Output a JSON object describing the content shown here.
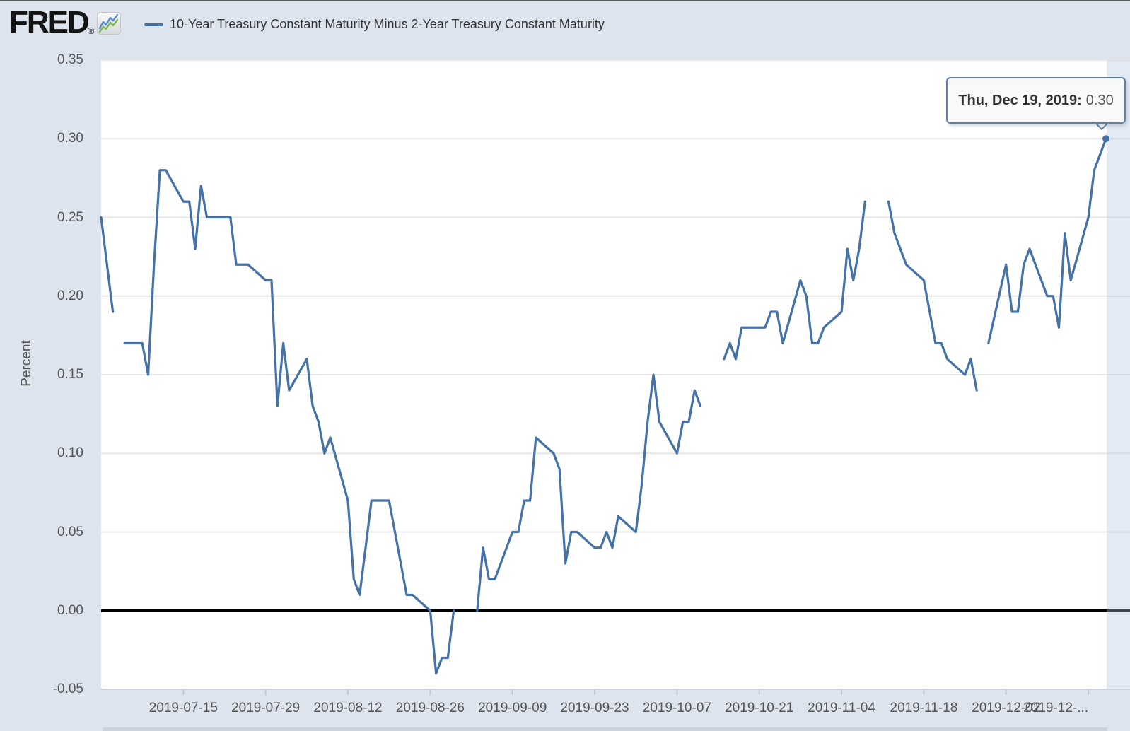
{
  "header": {
    "logo_text": "FRED",
    "logo_registered": "®",
    "logo_icon": "fred-sparkline-icon",
    "legend": {
      "series_label": "10-Year Treasury Constant Maturity Minus 2-Year Treasury Constant Maturity",
      "series_color": "#4572a7"
    }
  },
  "tooltip": {
    "date_label": "Thu, Dec 19, 2019:",
    "value": "0.30"
  },
  "colors": {
    "page_background": "#dde4ee",
    "plot_background": "#ffffff",
    "line": "#4572a7",
    "gridline": "#e7e7e7",
    "zero_line": "#000000",
    "axis_text": "#555555",
    "tooltip_border": "#5e81ab",
    "crosshair_band": "rgba(174,194,222,0.35)",
    "icon_blue": "#5b8cc8",
    "icon_green": "#7ab648"
  },
  "chart_data": {
    "type": "line",
    "title": "10-Year Treasury Constant Maturity Minus 2-Year Treasury Constant Maturity",
    "xlabel": "",
    "ylabel": "Percent",
    "ylim": [
      -0.05,
      0.35
    ],
    "x_range": [
      "2019-07-01",
      "2019-12-23"
    ],
    "grid": true,
    "zero_line": true,
    "legend_position": "top",
    "y_ticks": [
      {
        "v": 0.35,
        "label": "0.35"
      },
      {
        "v": 0.3,
        "label": "0.30"
      },
      {
        "v": 0.25,
        "label": "0.25"
      },
      {
        "v": 0.2,
        "label": "0.20"
      },
      {
        "v": 0.15,
        "label": "0.15"
      },
      {
        "v": 0.1,
        "label": "0.10"
      },
      {
        "v": 0.05,
        "label": "0.05"
      },
      {
        "v": 0.0,
        "label": "0.00"
      },
      {
        "v": -0.05,
        "label": "-0.05"
      }
    ],
    "x_ticks": [
      {
        "date": "2019-07-15",
        "label": "2019-07-15",
        "align": "center"
      },
      {
        "date": "2019-07-29",
        "label": "2019-07-29",
        "align": "center"
      },
      {
        "date": "2019-08-12",
        "label": "2019-08-12",
        "align": "center"
      },
      {
        "date": "2019-08-26",
        "label": "2019-08-26",
        "align": "center"
      },
      {
        "date": "2019-09-09",
        "label": "2019-09-09",
        "align": "center"
      },
      {
        "date": "2019-09-23",
        "label": "2019-09-23",
        "align": "center"
      },
      {
        "date": "2019-10-07",
        "label": "2019-10-07",
        "align": "center"
      },
      {
        "date": "2019-10-21",
        "label": "2019-10-21",
        "align": "center"
      },
      {
        "date": "2019-11-04",
        "label": "2019-11-04",
        "align": "center"
      },
      {
        "date": "2019-11-18",
        "label": "2019-11-18",
        "align": "center"
      },
      {
        "date": "2019-12-02",
        "label": "2019-12-02",
        "align": "center"
      },
      {
        "date": "2019-12-16",
        "label": "2019-12-...",
        "align": "right"
      }
    ],
    "series": [
      {
        "name": "10-Year Treasury Constant Maturity Minus 2-Year Treasury Constant Maturity",
        "color": "#4572a7",
        "points": [
          [
            "2019-07-01",
            0.25
          ],
          [
            "2019-07-02",
            0.22
          ],
          [
            "2019-07-03",
            0.19
          ],
          [
            "2019-07-04",
            null
          ],
          [
            "2019-07-05",
            0.17
          ],
          [
            "2019-07-08",
            0.17
          ],
          [
            "2019-07-09",
            0.15
          ],
          [
            "2019-07-10",
            0.22
          ],
          [
            "2019-07-11",
            0.28
          ],
          [
            "2019-07-12",
            0.28
          ],
          [
            "2019-07-15",
            0.26
          ],
          [
            "2019-07-16",
            0.26
          ],
          [
            "2019-07-17",
            0.23
          ],
          [
            "2019-07-18",
            0.27
          ],
          [
            "2019-07-19",
            0.25
          ],
          [
            "2019-07-22",
            0.25
          ],
          [
            "2019-07-23",
            0.25
          ],
          [
            "2019-07-24",
            0.22
          ],
          [
            "2019-07-25",
            0.22
          ],
          [
            "2019-07-26",
            0.22
          ],
          [
            "2019-07-29",
            0.21
          ],
          [
            "2019-07-30",
            0.21
          ],
          [
            "2019-07-31",
            0.13
          ],
          [
            "2019-08-01",
            0.17
          ],
          [
            "2019-08-02",
            0.14
          ],
          [
            "2019-08-05",
            0.16
          ],
          [
            "2019-08-06",
            0.13
          ],
          [
            "2019-08-07",
            0.12
          ],
          [
            "2019-08-08",
            0.1
          ],
          [
            "2019-08-09",
            0.11
          ],
          [
            "2019-08-12",
            0.07
          ],
          [
            "2019-08-13",
            0.02
          ],
          [
            "2019-08-14",
            0.01
          ],
          [
            "2019-08-15",
            0.04
          ],
          [
            "2019-08-16",
            0.07
          ],
          [
            "2019-08-19",
            0.07
          ],
          [
            "2019-08-20",
            0.05
          ],
          [
            "2019-08-21",
            0.03
          ],
          [
            "2019-08-22",
            0.01
          ],
          [
            "2019-08-23",
            0.01
          ],
          [
            "2019-08-26",
            0.0
          ],
          [
            "2019-08-27",
            -0.04
          ],
          [
            "2019-08-28",
            -0.03
          ],
          [
            "2019-08-29",
            -0.03
          ],
          [
            "2019-08-30",
            0.0
          ],
          [
            "2019-09-02",
            null
          ],
          [
            "2019-09-03",
            0.0
          ],
          [
            "2019-09-04",
            0.04
          ],
          [
            "2019-09-05",
            0.02
          ],
          [
            "2019-09-06",
            0.02
          ],
          [
            "2019-09-09",
            0.05
          ],
          [
            "2019-09-10",
            0.05
          ],
          [
            "2019-09-11",
            0.07
          ],
          [
            "2019-09-12",
            0.07
          ],
          [
            "2019-09-13",
            0.11
          ],
          [
            "2019-09-16",
            0.1
          ],
          [
            "2019-09-17",
            0.09
          ],
          [
            "2019-09-18",
            0.03
          ],
          [
            "2019-09-19",
            0.05
          ],
          [
            "2019-09-20",
            0.05
          ],
          [
            "2019-09-23",
            0.04
          ],
          [
            "2019-09-24",
            0.04
          ],
          [
            "2019-09-25",
            0.05
          ],
          [
            "2019-09-26",
            0.04
          ],
          [
            "2019-09-27",
            0.06
          ],
          [
            "2019-09-30",
            0.05
          ],
          [
            "2019-10-01",
            0.08
          ],
          [
            "2019-10-02",
            0.12
          ],
          [
            "2019-10-03",
            0.15
          ],
          [
            "2019-10-04",
            0.12
          ],
          [
            "2019-10-07",
            0.1
          ],
          [
            "2019-10-08",
            0.12
          ],
          [
            "2019-10-09",
            0.12
          ],
          [
            "2019-10-10",
            0.14
          ],
          [
            "2019-10-11",
            0.13
          ],
          [
            "2019-10-14",
            null
          ],
          [
            "2019-10-15",
            0.16
          ],
          [
            "2019-10-16",
            0.17
          ],
          [
            "2019-10-17",
            0.16
          ],
          [
            "2019-10-18",
            0.18
          ],
          [
            "2019-10-21",
            0.18
          ],
          [
            "2019-10-22",
            0.18
          ],
          [
            "2019-10-23",
            0.19
          ],
          [
            "2019-10-24",
            0.19
          ],
          [
            "2019-10-25",
            0.17
          ],
          [
            "2019-10-28",
            0.21
          ],
          [
            "2019-10-29",
            0.2
          ],
          [
            "2019-10-30",
            0.17
          ],
          [
            "2019-10-31",
            0.17
          ],
          [
            "2019-11-01",
            0.18
          ],
          [
            "2019-11-04",
            0.19
          ],
          [
            "2019-11-05",
            0.23
          ],
          [
            "2019-11-06",
            0.21
          ],
          [
            "2019-11-07",
            0.23
          ],
          [
            "2019-11-08",
            0.26
          ],
          [
            "2019-11-11",
            null
          ],
          [
            "2019-11-12",
            0.26
          ],
          [
            "2019-11-13",
            0.24
          ],
          [
            "2019-11-14",
            0.23
          ],
          [
            "2019-11-15",
            0.22
          ],
          [
            "2019-11-18",
            0.21
          ],
          [
            "2019-11-19",
            0.19
          ],
          [
            "2019-11-20",
            0.17
          ],
          [
            "2019-11-21",
            0.17
          ],
          [
            "2019-11-22",
            0.16
          ],
          [
            "2019-11-25",
            0.15
          ],
          [
            "2019-11-26",
            0.16
          ],
          [
            "2019-11-27",
            0.14
          ],
          [
            "2019-11-28",
            null
          ],
          [
            "2019-11-29",
            0.17
          ],
          [
            "2019-12-02",
            0.22
          ],
          [
            "2019-12-03",
            0.19
          ],
          [
            "2019-12-04",
            0.19
          ],
          [
            "2019-12-05",
            0.22
          ],
          [
            "2019-12-06",
            0.23
          ],
          [
            "2019-12-09",
            0.2
          ],
          [
            "2019-12-10",
            0.2
          ],
          [
            "2019-12-11",
            0.18
          ],
          [
            "2019-12-12",
            0.24
          ],
          [
            "2019-12-13",
            0.21
          ],
          [
            "2019-12-16",
            0.25
          ],
          [
            "2019-12-17",
            0.28
          ],
          [
            "2019-12-18",
            0.29
          ],
          [
            "2019-12-19",
            0.3
          ]
        ]
      }
    ]
  }
}
